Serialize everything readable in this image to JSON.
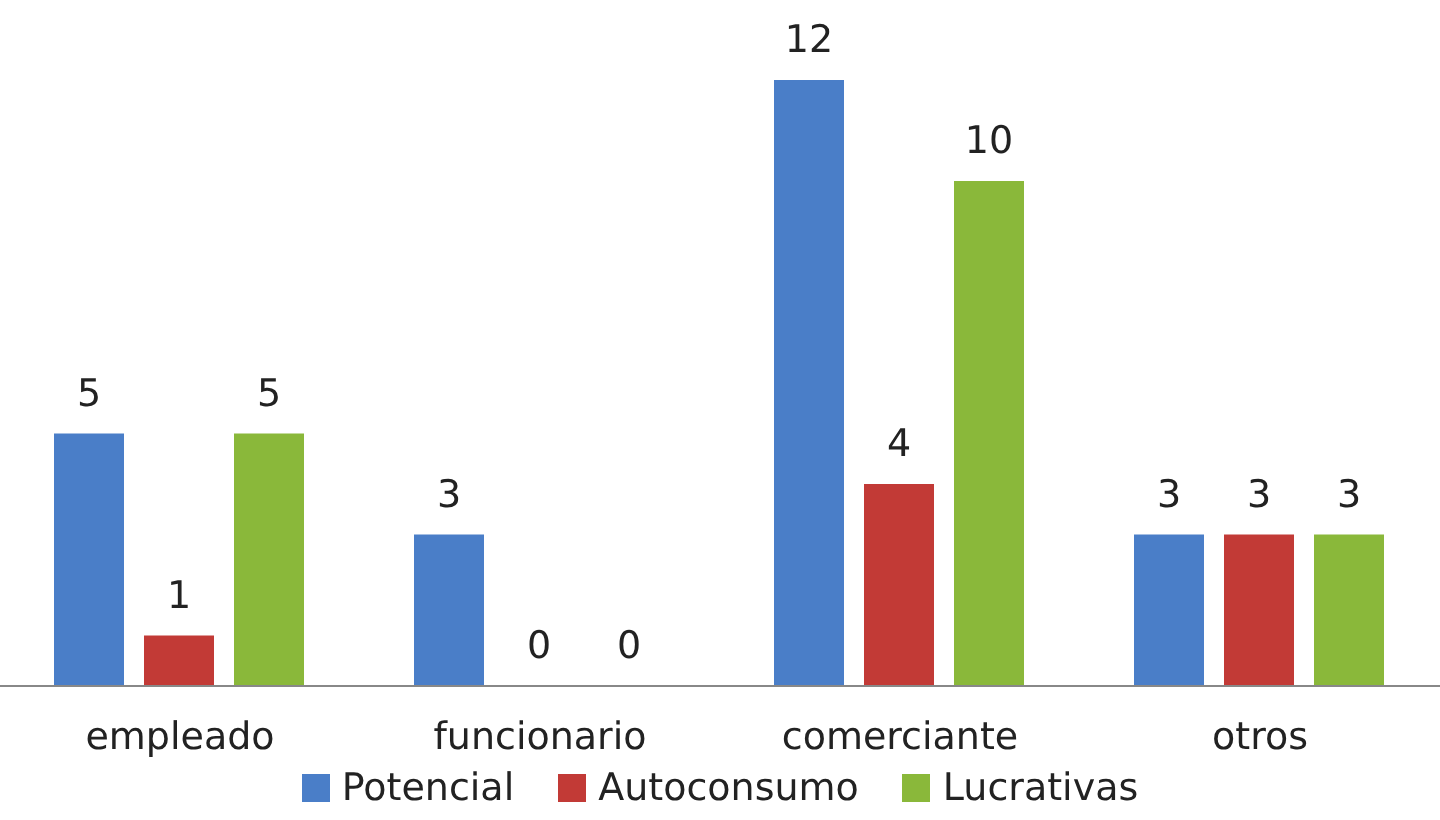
{
  "chart_data": {
    "type": "bar",
    "categories": [
      "empleado",
      "funcionario",
      "comerciante",
      "otros"
    ],
    "series": [
      {
        "name": "Potencial",
        "color": "#4a7ec8",
        "values": [
          5,
          3,
          12,
          3
        ]
      },
      {
        "name": "Autoconsumo",
        "color": "#c23a36",
        "values": [
          1,
          0,
          4,
          3
        ]
      },
      {
        "name": "Lucrativas",
        "color": "#8ab83a",
        "values": [
          5,
          0,
          10,
          3
        ]
      }
    ],
    "data_labels": true,
    "grid": false,
    "legend": "bottom"
  }
}
